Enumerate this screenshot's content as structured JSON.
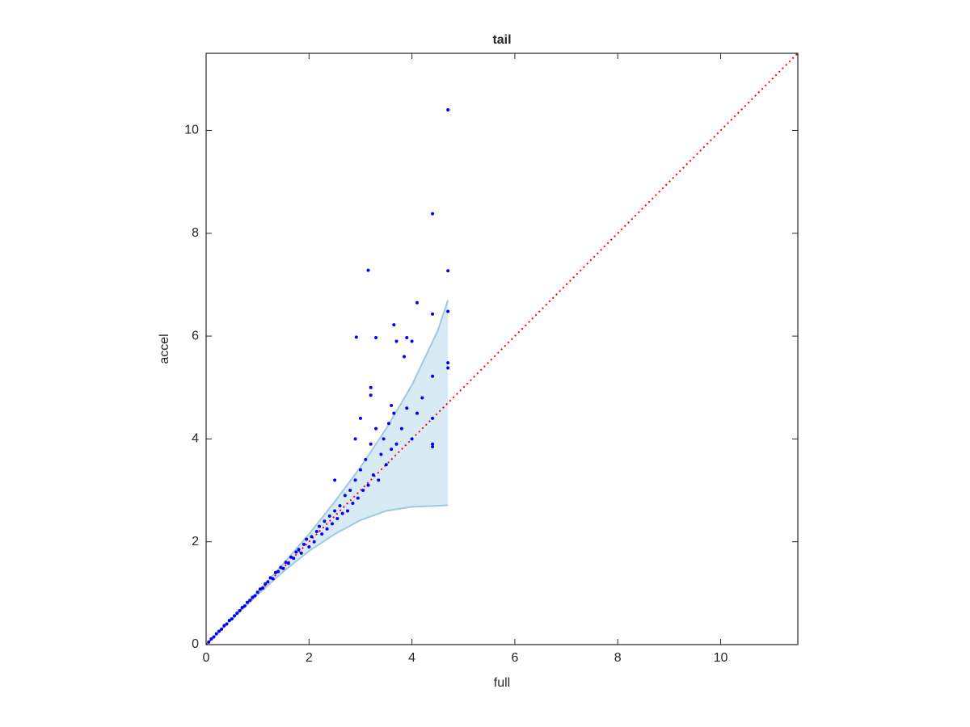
{
  "chart_data": {
    "type": "scatter",
    "title": "tail",
    "x_label": "full",
    "y_label": "accel",
    "xlim": [
      0,
      11.5
    ],
    "ylim": [
      0,
      11.5
    ],
    "xticks": [
      0,
      2,
      4,
      6,
      8,
      10
    ],
    "yticks": [
      0,
      2,
      4,
      6,
      8,
      10
    ],
    "points": {
      "color": "#0000ff",
      "x": [
        0.05,
        0.1,
        0.15,
        0.2,
        0.25,
        0.3,
        0.35,
        0.4,
        0.45,
        0.5,
        0.55,
        0.6,
        0.65,
        0.7,
        0.75,
        0.8,
        0.85,
        0.9,
        0.95,
        1.0,
        1.05,
        1.1,
        1.15,
        1.2,
        1.25,
        1.3,
        1.35,
        1.4,
        1.45,
        1.5,
        1.55,
        1.6,
        1.65,
        1.7,
        1.75,
        1.8,
        1.85,
        1.9,
        1.95,
        2.0,
        2.05,
        2.1,
        2.15,
        2.2,
        2.25,
        2.3,
        2.35,
        2.4,
        2.45,
        2.5,
        2.55,
        2.6,
        2.65,
        2.7,
        2.75,
        2.8,
        2.85,
        2.9,
        2.95,
        3.0,
        3.05,
        3.1,
        3.15,
        3.2,
        3.25,
        3.3,
        3.35,
        3.4,
        3.45,
        3.5,
        3.55,
        3.6,
        3.65,
        3.7,
        3.8,
        3.9,
        4.0,
        4.1,
        4.2,
        4.4,
        4.4,
        4.4,
        2.92,
        3.15,
        3.3,
        3.2,
        3.2,
        3.65,
        3.7,
        3.85,
        3.9,
        4.0,
        4.1,
        4.4,
        4.4,
        4.4,
        4.7,
        4.7,
        4.7,
        4.7,
        4.7,
        3.6,
        3.0,
        2.5,
        2.9
      ],
      "y": [
        0.05,
        0.11,
        0.15,
        0.21,
        0.26,
        0.3,
        0.37,
        0.4,
        0.47,
        0.5,
        0.56,
        0.61,
        0.66,
        0.72,
        0.75,
        0.82,
        0.86,
        0.92,
        0.95,
        1.02,
        1.08,
        1.1,
        1.18,
        1.22,
        1.3,
        1.28,
        1.4,
        1.42,
        1.5,
        1.48,
        1.6,
        1.58,
        1.7,
        1.68,
        1.8,
        1.85,
        1.78,
        1.95,
        2.05,
        1.9,
        2.1,
        2.0,
        2.2,
        2.3,
        2.15,
        2.4,
        2.25,
        2.5,
        2.35,
        2.6,
        2.45,
        2.7,
        2.55,
        2.9,
        2.6,
        3.0,
        2.75,
        3.2,
        2.85,
        3.4,
        3.0,
        3.6,
        3.1,
        3.9,
        3.3,
        4.2,
        3.2,
        3.7,
        4.0,
        3.5,
        4.3,
        3.8,
        4.5,
        3.9,
        4.2,
        4.6,
        4.0,
        4.5,
        4.8,
        4.4,
        3.9,
        3.85,
        5.98,
        7.28,
        5.97,
        5.0,
        4.85,
        6.22,
        5.9,
        5.6,
        5.97,
        5.9,
        6.65,
        8.38,
        6.43,
        5.22,
        10.4,
        7.27,
        6.48,
        5.48,
        5.38,
        4.65,
        4.4,
        3.2,
        4.0
      ]
    },
    "band": {
      "color": "#9ecae1",
      "x": [
        0,
        0.5,
        1,
        1.5,
        2,
        2.5,
        3,
        3.5,
        4,
        4.5,
        4.7
      ],
      "upper": [
        0,
        0.5,
        1.02,
        1.57,
        2.15,
        2.78,
        3.45,
        4.2,
        5.05,
        6.1,
        6.7
      ],
      "lower": [
        0,
        0.49,
        0.97,
        1.42,
        1.82,
        2.15,
        2.42,
        2.6,
        2.68,
        2.7,
        2.71
      ]
    },
    "reference_line": {
      "color": "#ff0000",
      "x": [
        0,
        11.5
      ],
      "y": [
        0,
        11.5
      ]
    }
  }
}
